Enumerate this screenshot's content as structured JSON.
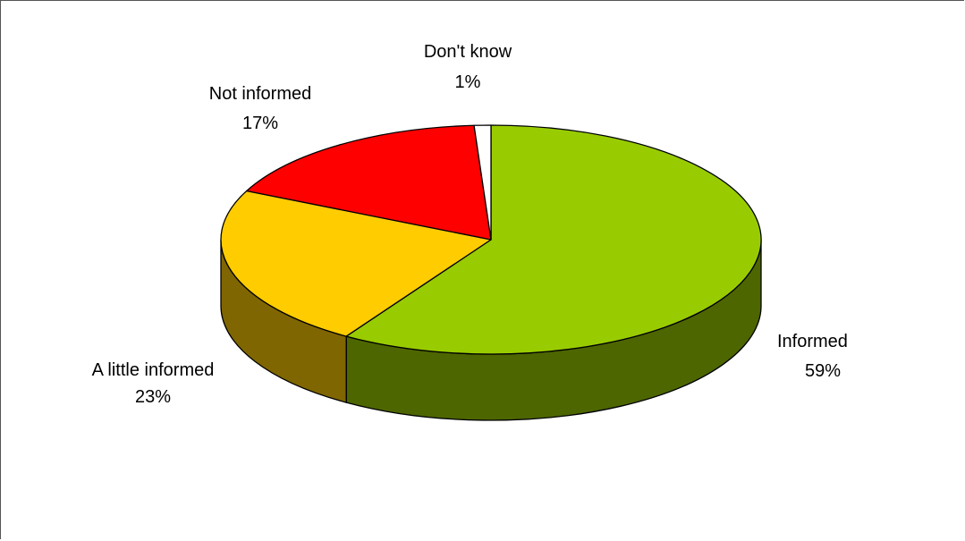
{
  "chart_data": {
    "type": "pie",
    "title": "",
    "three_d": true,
    "start_angle_deg": 90,
    "direction": "clockwise",
    "legend": "none",
    "slices": [
      {
        "label": "Informed",
        "value_label": "59%",
        "value": 59,
        "color": "#99CC00",
        "side_color": "#4D6600",
        "label_anchor": "start"
      },
      {
        "label": "A little informed",
        "value_label": "23%",
        "value": 23,
        "color": "#FFCC00",
        "side_color": "#806600",
        "label_anchor": "middle"
      },
      {
        "label": "Not informed",
        "value_label": "17%",
        "value": 17,
        "color": "#FF0000",
        "side_color": "#800000",
        "label_anchor": "middle"
      },
      {
        "label": "Don't know",
        "value_label": "1%",
        "value": 1,
        "color": "#FFFFFF",
        "side_color": "#808080",
        "label_anchor": "middle"
      }
    ]
  }
}
